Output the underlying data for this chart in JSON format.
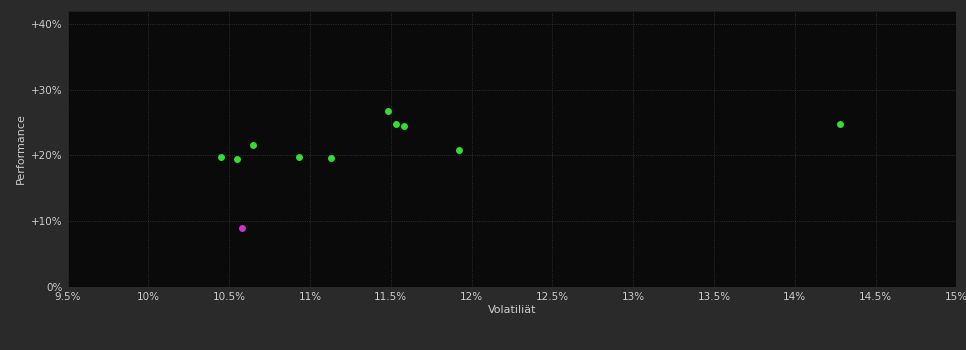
{
  "background_color": "#2a2a2a",
  "plot_bg_color": "#0a0a0a",
  "grid_color": "#3a3a3a",
  "text_color": "#cccccc",
  "xlabel": "Volatiliät",
  "ylabel": "Performance",
  "xlim": [
    0.095,
    0.15
  ],
  "ylim": [
    0.0,
    0.42
  ],
  "xtick_values": [
    0.095,
    0.1,
    0.105,
    0.11,
    0.115,
    0.12,
    0.125,
    0.13,
    0.135,
    0.14,
    0.145,
    0.15
  ],
  "ytick_values": [
    0.0,
    0.1,
    0.2,
    0.3,
    0.4
  ],
  "green_points": [
    [
      0.1045,
      0.198
    ],
    [
      0.1055,
      0.195
    ],
    [
      0.1065,
      0.215
    ],
    [
      0.1093,
      0.197
    ],
    [
      0.1113,
      0.196
    ],
    [
      0.1148,
      0.268
    ],
    [
      0.1153,
      0.248
    ],
    [
      0.1158,
      0.245
    ],
    [
      0.1192,
      0.208
    ],
    [
      0.1428,
      0.248
    ]
  ],
  "magenta_points": [
    [
      0.1058,
      0.089
    ]
  ],
  "green_color": "#33dd33",
  "magenta_color": "#cc33cc",
  "point_size": 25,
  "grid_linewidth": 0.5,
  "grid_linestyle": "dotted"
}
